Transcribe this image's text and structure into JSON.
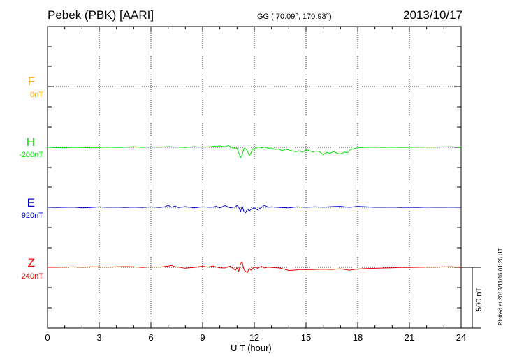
{
  "header": {
    "station": "Pebek (PBK)  [AARI]",
    "coords": "GG ( 70.09°, 170.93°)",
    "date": "2013/10/17"
  },
  "side_note": "Plotted at 2013/11/16 01:26 UT",
  "scale_bar": {
    "label": "500 nT",
    "value_nT": 500
  },
  "colors": {
    "F": "#ffa500",
    "H": "#00e600",
    "E": "#0000cc",
    "Z": "#e60000",
    "axis": "#000000",
    "grid": "#000000"
  },
  "chart_data": {
    "type": "line",
    "xlabel": "U T (hour)",
    "xlim": [
      0,
      24
    ],
    "xticks": [
      0,
      3,
      6,
      9,
      12,
      15,
      18,
      21,
      24
    ],
    "grid": true,
    "series": [
      {
        "name": "F",
        "baseline": "0nT",
        "x": [],
        "y": []
      },
      {
        "name": "H",
        "baseline": "-200nT",
        "x": [
          0,
          0.5,
          1,
          1.5,
          2,
          2.5,
          3,
          3.5,
          4,
          4.5,
          5,
          5.5,
          6,
          6.5,
          7,
          7.5,
          8,
          8.5,
          9,
          9.5,
          10,
          10.25,
          10.5,
          10.75,
          11,
          11.1,
          11.2,
          11.3,
          11.4,
          11.5,
          11.6,
          11.7,
          11.8,
          11.9,
          12,
          12.2,
          12.4,
          12.6,
          12.8,
          13,
          13.2,
          13.4,
          13.6,
          13.8,
          14,
          14.2,
          14.4,
          14.6,
          14.8,
          15,
          15.2,
          15.4,
          15.6,
          15.8,
          16,
          16.2,
          16.4,
          16.6,
          16.8,
          17,
          17.2,
          17.4,
          17.6,
          17.8,
          18,
          18.5,
          19,
          19.5,
          20,
          20.5,
          21,
          21.5,
          22,
          22.5,
          23,
          23.5,
          24
        ],
        "y": [
          0,
          -3,
          -4,
          0,
          -2,
          -4,
          -2,
          2,
          -2,
          0,
          6,
          -2,
          4,
          0,
          6,
          2,
          -2,
          6,
          0,
          6,
          12,
          4,
          14,
          -6,
          -8,
          -48,
          -86,
          -62,
          -8,
          -12,
          -30,
          -70,
          -50,
          -12,
          -20,
          4,
          -4,
          2,
          -8,
          -6,
          -20,
          -14,
          -28,
          -16,
          -22,
          -30,
          -38,
          -30,
          -40,
          -20,
          -28,
          -40,
          -30,
          -38,
          -62,
          -42,
          -50,
          -34,
          -50,
          -56,
          -40,
          -44,
          -18,
          -10,
          -4,
          0,
          2,
          -2,
          2,
          -2,
          0,
          2,
          1,
          2,
          4,
          4,
          2
        ]
      },
      {
        "name": "E",
        "baseline": "920nT",
        "x": [
          0,
          0.5,
          1,
          1.5,
          2,
          2.5,
          3,
          3.5,
          4,
          4.5,
          5,
          5.5,
          6,
          6.5,
          6.8,
          7,
          7.2,
          7.4,
          7.6,
          8,
          8.5,
          9,
          9.5,
          9.8,
          10,
          10.3,
          10.6,
          10.9,
          11,
          11.1,
          11.2,
          11.3,
          11.4,
          11.5,
          11.6,
          11.7,
          11.8,
          12,
          12.2,
          12.4,
          12.6,
          12.8,
          13,
          13.5,
          14,
          14.5,
          15,
          15.5,
          16,
          16.5,
          17,
          17.5,
          18,
          18.5,
          19,
          19.5,
          20,
          20.5,
          21,
          21.5,
          22,
          22.5,
          23,
          23.5,
          24
        ],
        "y": [
          0,
          -2,
          0,
          2,
          -4,
          -2,
          4,
          0,
          2,
          -2,
          2,
          -2,
          4,
          -2,
          4,
          16,
          2,
          10,
          -2,
          6,
          -4,
          4,
          0,
          8,
          -4,
          14,
          -4,
          4,
          16,
          0,
          -34,
          8,
          -36,
          -44,
          -12,
          -30,
          -18,
          -4,
          -22,
          -2,
          18,
          0,
          4,
          -2,
          -4,
          4,
          0,
          4,
          2,
          6,
          8,
          0,
          8,
          4,
          0,
          0,
          2,
          -2,
          0,
          -2,
          2,
          0,
          0,
          2,
          0
        ]
      },
      {
        "name": "Z",
        "baseline": "240nT",
        "x": [
          0,
          0.5,
          1,
          1.5,
          2,
          2.5,
          3,
          3.5,
          4,
          4.5,
          5,
          5.5,
          6,
          6.5,
          7,
          7.2,
          7.4,
          7.6,
          8,
          8.2,
          8.5,
          9,
          9.3,
          9.6,
          10,
          10.3,
          10.6,
          10.9,
          11,
          11.1,
          11.2,
          11.3,
          11.4,
          11.5,
          11.6,
          11.7,
          11.8,
          12,
          12.2,
          12.4,
          12.6,
          12.8,
          13,
          13.5,
          14,
          14.3,
          14.6,
          15,
          15.5,
          16,
          16.5,
          17,
          17.5,
          18,
          18.5,
          19,
          19.5,
          20,
          20.5,
          21,
          21.5,
          22,
          22.5,
          23,
          23.5,
          24
        ],
        "y": [
          0,
          0,
          2,
          4,
          0,
          4,
          4,
          2,
          4,
          6,
          4,
          -2,
          4,
          2,
          10,
          16,
          4,
          2,
          -8,
          -4,
          -2,
          10,
          2,
          10,
          -4,
          -6,
          10,
          -24,
          -4,
          -32,
          32,
          42,
          -18,
          -36,
          -42,
          -8,
          -24,
          2,
          -8,
          8,
          -6,
          2,
          -2,
          -6,
          -26,
          -24,
          -18,
          -20,
          -18,
          -16,
          -18,
          -12,
          -24,
          -14,
          -10,
          -8,
          -6,
          -4,
          -2,
          -2,
          0,
          2,
          2,
          4,
          4,
          2
        ]
      }
    ]
  }
}
